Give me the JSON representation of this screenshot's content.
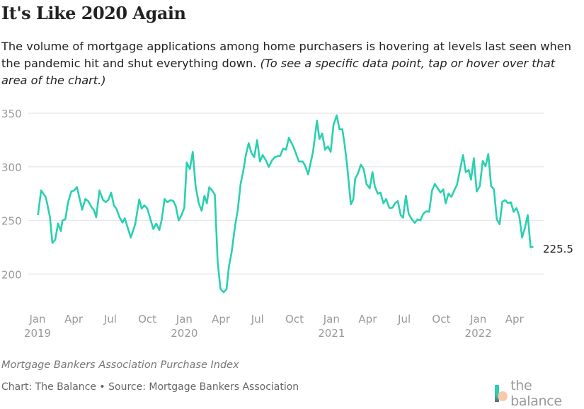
{
  "header": {
    "title": "It's Like 2020 Again",
    "subtitle": "The volume of mortgage applications among home purchasers is hovering at levels last seen when the pandemic hit and shut everything down.",
    "subtitle_note": "(To see a specific data point, tap or hover over that area of the chart.)"
  },
  "footer": {
    "note": "Mortgage Bankers Association Purchase Index",
    "source": "Chart: The Balance • Source: Mortgage Bankers Association",
    "logo_text": "the balance"
  },
  "chart_data": {
    "type": "line",
    "title": "",
    "xlabel": "",
    "ylabel": "",
    "ylim": [
      170,
      350
    ],
    "yticks": [
      200,
      250,
      300,
      350
    ],
    "xticks": [
      {
        "date": "2019-01-01",
        "label": "Jan",
        "year": "2019"
      },
      {
        "date": "2019-04-01",
        "label": "Apr",
        "year": ""
      },
      {
        "date": "2019-07-01",
        "label": "Jul",
        "year": ""
      },
      {
        "date": "2019-10-01",
        "label": "Oct",
        "year": ""
      },
      {
        "date": "2020-01-01",
        "label": "Jan",
        "year": "2020"
      },
      {
        "date": "2020-04-01",
        "label": "Apr",
        "year": ""
      },
      {
        "date": "2020-07-01",
        "label": "Jul",
        "year": ""
      },
      {
        "date": "2020-10-01",
        "label": "Oct",
        "year": ""
      },
      {
        "date": "2021-01-01",
        "label": "Jan",
        "year": "2021"
      },
      {
        "date": "2021-04-01",
        "label": "Apr",
        "year": ""
      },
      {
        "date": "2021-07-01",
        "label": "Jul",
        "year": ""
      },
      {
        "date": "2021-10-01",
        "label": "Oct",
        "year": ""
      },
      {
        "date": "2022-01-01",
        "label": "Jan",
        "year": "2022"
      },
      {
        "date": "2022-04-01",
        "label": "Apr",
        "year": ""
      }
    ],
    "grid": true,
    "legend": "none",
    "line_color": "#2ad0b0",
    "end_label": "225.5",
    "points": [
      [
        "2019-01-02",
        255
      ],
      [
        "2019-01-10",
        278
      ],
      [
        "2019-01-21",
        272
      ],
      [
        "2019-01-25",
        266
      ],
      [
        "2019-02-01",
        253
      ],
      [
        "2019-02-07",
        229
      ],
      [
        "2019-02-14",
        232
      ],
      [
        "2019-02-21",
        247
      ],
      [
        "2019-02-28",
        240
      ],
      [
        "2019-03-04",
        250
      ],
      [
        "2019-03-11",
        251
      ],
      [
        "2019-03-18",
        267
      ],
      [
        "2019-03-26",
        277
      ],
      [
        "2019-04-02",
        278
      ],
      [
        "2019-04-09",
        281
      ],
      [
        "2019-04-22",
        260
      ],
      [
        "2019-04-30",
        270
      ],
      [
        "2019-05-07",
        268
      ],
      [
        "2019-05-16",
        262
      ],
      [
        "2019-05-21",
        260
      ],
      [
        "2019-05-27",
        253
      ],
      [
        "2019-06-04",
        278
      ],
      [
        "2019-06-13",
        269
      ],
      [
        "2019-06-20",
        267
      ],
      [
        "2019-06-26",
        269
      ],
      [
        "2019-07-03",
        276
      ],
      [
        "2019-07-10",
        264
      ],
      [
        "2019-07-16",
        261
      ],
      [
        "2019-07-24",
        253
      ],
      [
        "2019-07-31",
        248
      ],
      [
        "2019-08-06",
        252
      ],
      [
        "2019-08-21",
        234
      ],
      [
        "2019-09-01",
        246.5
      ],
      [
        "2019-09-11",
        269.6
      ],
      [
        "2019-09-17",
        261
      ],
      [
        "2019-09-24",
        264
      ],
      [
        "2019-10-01",
        261
      ],
      [
        "2019-10-09",
        251
      ],
      [
        "2019-10-16",
        242
      ],
      [
        "2019-10-23",
        247
      ],
      [
        "2019-10-31",
        241
      ],
      [
        "2019-11-06",
        251
      ],
      [
        "2019-11-13",
        270
      ],
      [
        "2019-11-20",
        267
      ],
      [
        "2019-11-28",
        269
      ],
      [
        "2019-12-05",
        268
      ],
      [
        "2019-12-11",
        263
      ],
      [
        "2019-12-18",
        250
      ],
      [
        "2019-12-25",
        255
      ],
      [
        "2020-01-01",
        262
      ],
      [
        "2020-01-07",
        304
      ],
      [
        "2020-01-15",
        298
      ],
      [
        "2020-01-22",
        314
      ],
      [
        "2020-01-29",
        282
      ],
      [
        "2020-02-06",
        266
      ],
      [
        "2020-02-13",
        259
      ],
      [
        "2020-02-20",
        273
      ],
      [
        "2020-02-26",
        266
      ],
      [
        "2020-03-03",
        281
      ],
      [
        "2020-03-10",
        278
      ],
      [
        "2020-03-17",
        274
      ],
      [
        "2020-03-24",
        211
      ],
      [
        "2020-03-31",
        186
      ],
      [
        "2020-04-08",
        183
      ],
      [
        "2020-04-15",
        186
      ],
      [
        "2020-04-21",
        207
      ],
      [
        "2020-04-28",
        221
      ],
      [
        "2020-05-06",
        244
      ],
      [
        "2020-05-13",
        260
      ],
      [
        "2020-05-20",
        284
      ],
      [
        "2020-05-27",
        297
      ],
      [
        "2020-06-02",
        311
      ],
      [
        "2020-06-09",
        322
      ],
      [
        "2020-06-16",
        313
      ],
      [
        "2020-06-23",
        309
      ],
      [
        "2020-06-30",
        325
      ],
      [
        "2020-07-07",
        305
      ],
      [
        "2020-07-14",
        311
      ],
      [
        "2020-07-22",
        306
      ],
      [
        "2020-07-29",
        300
      ],
      [
        "2020-08-06",
        306
      ],
      [
        "2020-08-13",
        309
      ],
      [
        "2020-08-20",
        310
      ],
      [
        "2020-08-26",
        310
      ],
      [
        "2020-09-03",
        317
      ],
      [
        "2020-09-10",
        316
      ],
      [
        "2020-09-17",
        327
      ],
      [
        "2020-09-28",
        319
      ],
      [
        "2020-10-12",
        305
      ],
      [
        "2020-10-21",
        305
      ],
      [
        "2020-10-27",
        301.5
      ],
      [
        "2020-11-04",
        293
      ],
      [
        "2020-11-16",
        314
      ],
      [
        "2020-11-26",
        343
      ],
      [
        "2020-12-02",
        326
      ],
      [
        "2020-12-09",
        331
      ],
      [
        "2020-12-16",
        316
      ],
      [
        "2020-12-23",
        319
      ],
      [
        "2020-12-30",
        314
      ],
      [
        "2021-01-06",
        339
      ],
      [
        "2021-01-14",
        348
      ],
      [
        "2021-01-21",
        335
      ],
      [
        "2021-01-28",
        335
      ],
      [
        "2021-02-03",
        320
      ],
      [
        "2021-02-09",
        301
      ],
      [
        "2021-02-18",
        265
      ],
      [
        "2021-02-24",
        269.5
      ],
      [
        "2021-03-01",
        289
      ],
      [
        "2021-03-08",
        294
      ],
      [
        "2021-03-15",
        302
      ],
      [
        "2021-03-22",
        298
      ],
      [
        "2021-03-29",
        284
      ],
      [
        "2021-04-06",
        280
      ],
      [
        "2021-04-13",
        295
      ],
      [
        "2021-04-19",
        281.5
      ],
      [
        "2021-04-26",
        275
      ],
      [
        "2021-05-03",
        276
      ],
      [
        "2021-05-10",
        266
      ],
      [
        "2021-05-17",
        270
      ],
      [
        "2021-05-25",
        261.5
      ],
      [
        "2021-06-02",
        262
      ],
      [
        "2021-06-08",
        266
      ],
      [
        "2021-06-15",
        268
      ],
      [
        "2021-06-22",
        255
      ],
      [
        "2021-06-28",
        252.6
      ],
      [
        "2021-07-05",
        273
      ],
      [
        "2021-07-12",
        256
      ],
      [
        "2021-07-20",
        251
      ],
      [
        "2021-07-27",
        247.6
      ],
      [
        "2021-08-03",
        251
      ],
      [
        "2021-08-10",
        250
      ],
      [
        "2021-08-17",
        256
      ],
      [
        "2021-08-25",
        258.6
      ],
      [
        "2021-09-01",
        258
      ],
      [
        "2021-09-08",
        278
      ],
      [
        "2021-09-15",
        284
      ],
      [
        "2021-09-22",
        280
      ],
      [
        "2021-09-29",
        276
      ],
      [
        "2021-10-06",
        279
      ],
      [
        "2021-10-12",
        266
      ],
      [
        "2021-10-19",
        275
      ],
      [
        "2021-10-26",
        272
      ],
      [
        "2021-11-02",
        278
      ],
      [
        "2021-11-09",
        283
      ],
      [
        "2021-11-16",
        296
      ],
      [
        "2021-11-24",
        311
      ],
      [
        "2021-12-01",
        295
      ],
      [
        "2021-12-08",
        297
      ],
      [
        "2021-12-14",
        288
      ],
      [
        "2021-12-21",
        308
      ],
      [
        "2021-12-28",
        277
      ],
      [
        "2022-01-05",
        282
      ],
      [
        "2022-01-12",
        305.5
      ],
      [
        "2022-01-19",
        300.5
      ],
      [
        "2022-01-26",
        312
      ],
      [
        "2022-02-02",
        282
      ],
      [
        "2022-02-09",
        279
      ],
      [
        "2022-02-16",
        251
      ],
      [
        "2022-02-23",
        246.5
      ],
      [
        "2022-03-02",
        267.4
      ],
      [
        "2022-03-09",
        269
      ],
      [
        "2022-03-16",
        266
      ],
      [
        "2022-03-23",
        267
      ],
      [
        "2022-03-30",
        258
      ],
      [
        "2022-04-06",
        261.5
      ],
      [
        "2022-04-13",
        254
      ],
      [
        "2022-04-20",
        234
      ],
      [
        "2022-04-27",
        243
      ],
      [
        "2022-05-04",
        255
      ],
      [
        "2022-05-11",
        225
      ],
      [
        "2022-05-18",
        225.5
      ]
    ]
  }
}
